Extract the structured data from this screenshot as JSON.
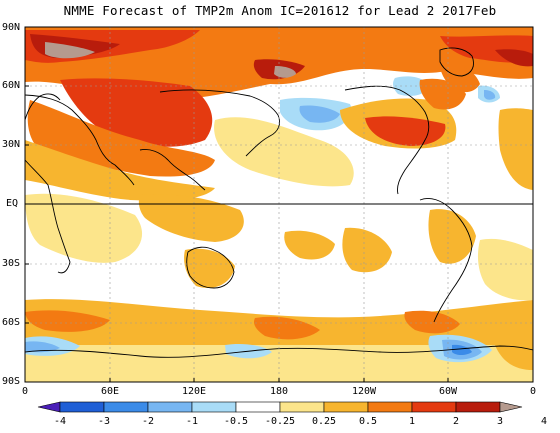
{
  "title": "NMME Forecast of TMP2m Anom IC=201612 for Lead 2 2017Feb",
  "lat_labels": [
    "90N",
    "60N",
    "30N",
    "EQ",
    "30S",
    "60S",
    "90S"
  ],
  "lon_labels": [
    "0",
    "60E",
    "120E",
    "180",
    "120W",
    "60W",
    "0"
  ],
  "colorbar": {
    "labels": [
      "-4",
      "-3",
      "-2",
      "-1",
      "-0.5",
      "-0.25",
      "0.25",
      "0.5",
      "1",
      "2",
      "3",
      "4"
    ],
    "colors": [
      "#4a1fb8",
      "#1f5fd6",
      "#3b8be8",
      "#77b6f2",
      "#a9dcf7",
      "#ffffff",
      "#fce58b",
      "#f7b52f",
      "#f37a12",
      "#e43a10",
      "#b81c0c",
      "#b59a8e"
    ]
  },
  "field_colors": {
    "neutral": "#ffffff",
    "warm_light": "#fce58b",
    "warm": "#f7b52f",
    "warmer": "#f37a12",
    "hot": "#e43a10",
    "very_hot": "#b81c0c",
    "extreme": "#b59a8e",
    "cool_light": "#a9dcf7",
    "cool": "#77b6f2",
    "cold": "#3b8be8"
  }
}
